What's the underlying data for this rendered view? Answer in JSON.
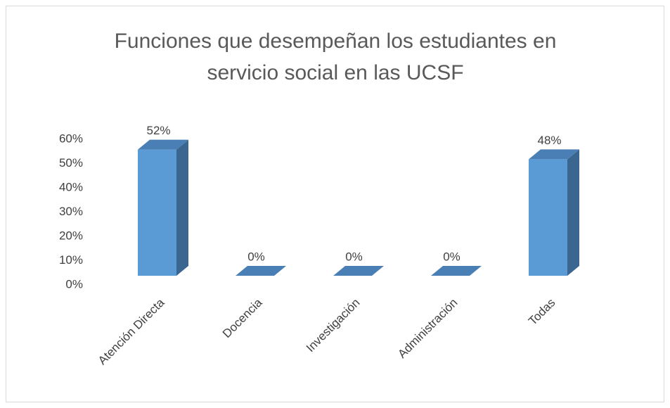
{
  "chart_data": {
    "type": "bar3d",
    "title": "Funciones que desempeñan los estudiantes en servicio social en las UCSF",
    "categories": [
      "Atención Directa",
      "Docencia",
      "Investigación",
      "Administración",
      "Todas"
    ],
    "values": [
      52,
      0,
      0,
      0,
      48
    ],
    "value_labels": [
      "52%",
      "0%",
      "0%",
      "0%",
      "48%"
    ],
    "color": "#5b9bd5",
    "ylim": [
      0,
      60
    ],
    "yticks": [
      {
        "value": 0,
        "label": "0%"
      },
      {
        "value": 10,
        "label": "10%"
      },
      {
        "value": 20,
        "label": "20%"
      },
      {
        "value": 30,
        "label": "30%"
      },
      {
        "value": 40,
        "label": "40%"
      },
      {
        "value": 50,
        "label": "50%"
      },
      {
        "value": 60,
        "label": "60%"
      }
    ],
    "grid": false
  }
}
